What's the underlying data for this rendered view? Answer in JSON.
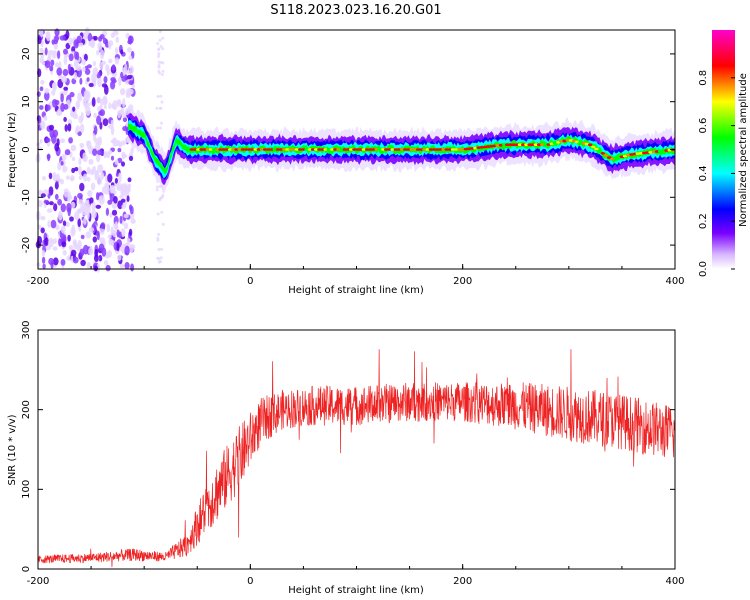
{
  "title": "S118.2023.023.16.20.G01",
  "chart_data": [
    {
      "type": "heatmap",
      "xlabel": "Height of straight line (km)",
      "ylabel": "Frequency (Hz)",
      "xlim": [
        -200,
        400
      ],
      "ylim": [
        -25,
        25
      ],
      "xticks": [
        -200,
        0,
        200,
        400
      ],
      "yticks": [
        -20,
        -10,
        0,
        10,
        20
      ],
      "colorbar": {
        "label": "Normalized spectral amplitude",
        "range": [
          0,
          1
        ],
        "ticks": [
          "0.0",
          "0.2",
          "0.4",
          "0.6",
          "0.8"
        ],
        "colors": [
          "#ffffff",
          "#7a00ff",
          "#0000ff",
          "#00ffff",
          "#00ff00",
          "#ffff00",
          "#ff0000",
          "#ff00cc"
        ]
      },
      "ridge": {
        "x": [
          -115,
          -100,
          -90,
          -80,
          -70,
          -60,
          0,
          100,
          200,
          240,
          280,
          300,
          320,
          340,
          360,
          400
        ],
        "y": [
          5,
          3,
          -2,
          -5,
          2,
          0,
          0,
          0,
          0,
          1,
          1,
          2,
          1,
          -2,
          -1,
          0
        ]
      },
      "noise_region": {
        "x": [
          -200,
          -110
        ],
        "note_colors": [
          "#e6d6ff",
          "#8a3dff",
          "#5b00e6"
        ]
      }
    },
    {
      "type": "line",
      "xlabel": "Height of straight line (km)",
      "ylabel": "SNR (10 * v/v)",
      "xlim": [
        -200,
        400
      ],
      "ylim": [
        0,
        300
      ],
      "xticks": [
        -200,
        0,
        200,
        400
      ],
      "yticks": [
        0,
        100,
        200,
        300
      ],
      "series": [
        {
          "color": "#ee2222",
          "x": [
            -200,
            -150,
            -110,
            -80,
            -60,
            -50,
            -40,
            -25,
            -10,
            10,
            30,
            60,
            100,
            150,
            200,
            250,
            300,
            350,
            400
          ],
          "values": [
            12,
            14,
            18,
            15,
            30,
            55,
            80,
            110,
            140,
            185,
            200,
            205,
            205,
            210,
            210,
            205,
            195,
            185,
            170
          ],
          "spread": [
            5,
            6,
            8,
            6,
            15,
            25,
            35,
            40,
            40,
            30,
            25,
            25,
            25,
            25,
            25,
            30,
            35,
            35,
            35
          ]
        }
      ]
    }
  ]
}
